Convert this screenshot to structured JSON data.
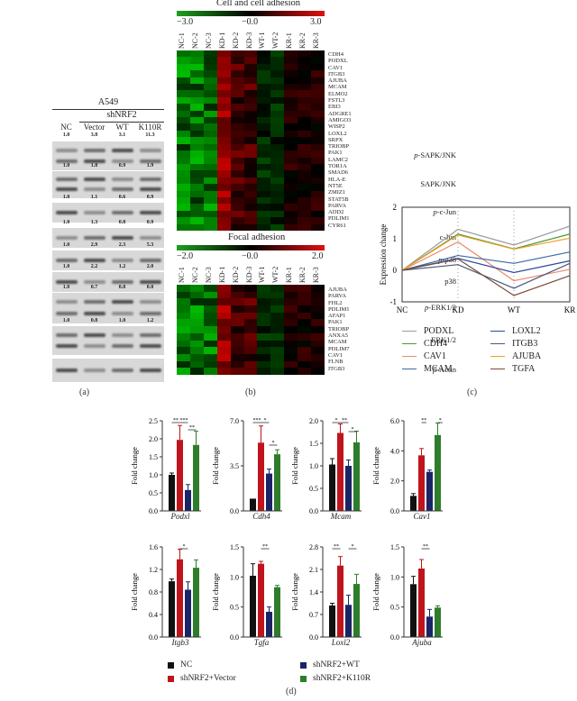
{
  "panels": {
    "a": "(a)",
    "b": "(b)",
    "c": "(c)",
    "d": "(d)"
  },
  "western_blot": {
    "cell_line": "A549",
    "group": "shNRF2",
    "lanes": [
      "NC",
      "Vector",
      "WT",
      "K110R"
    ],
    "rows": [
      {
        "label": "p-SAPK/JNK",
        "prefix": "p",
        "name": "-SAPK/JNK",
        "values": [
          "1.0",
          "3.8",
          "3.1",
          "11.3"
        ],
        "bands": 2
      },
      {
        "label": "SAPK/JNK",
        "prefix": "",
        "name": "SAPK/JNK",
        "values": [
          "1.0",
          "1.8",
          "0.9",
          "1.9"
        ],
        "bands": 2
      },
      {
        "label": "p-c-Jun",
        "prefix": "p",
        "name": "-c-Jun",
        "values": [
          "1.0",
          "1.1",
          "0.6",
          "0.9"
        ],
        "bands": 1
      },
      {
        "label": "c-Jun",
        "prefix": "",
        "name": "c-Jun",
        "values": [
          "1.0",
          "1.3",
          "0.8",
          "0.9"
        ],
        "bands": 1
      },
      {
        "label": "p-p38",
        "prefix": "p",
        "name": "-p38",
        "values": [
          "1.0",
          "2.9",
          "2.3",
          "5.3"
        ],
        "bands": 1
      },
      {
        "label": "p38",
        "prefix": "",
        "name": "p38",
        "values": [
          "1.0",
          "2.2",
          "1.2",
          "2.0"
        ],
        "bands": 1
      },
      {
        "label": "p-ERK1/2",
        "prefix": "p",
        "name": "-ERK1/2",
        "values": [
          "1.0",
          "0.7",
          "0.8",
          "0.8"
        ],
        "bands": 2
      },
      {
        "label": "ERK1/2",
        "prefix": "",
        "name": "ERK1/2",
        "values": [
          "1.0",
          "0.8",
          "1.0",
          "1.2"
        ],
        "bands": 2
      },
      {
        "label": "β-Actin",
        "prefix": "β",
        "name": "-Actin",
        "values": [],
        "bands": 1
      }
    ]
  },
  "heatmap1": {
    "title": "Cell and cell adhesion",
    "scale_min": "−3.0",
    "scale_mid": "−0.0",
    "scale_max": "3.0",
    "columns": [
      "NC-1",
      "NC-2",
      "NC-3",
      "KD-1",
      "KD-2",
      "KD-3",
      "WT-1",
      "WT-2",
      "KR-1",
      "KR-2",
      "KR-3"
    ],
    "genes": [
      "CDH4",
      "PODXL",
      "CAV1",
      "ITGB3",
      "AJUBA",
      "MCAM",
      "ELMO2",
      "FSTL3",
      "EBI3",
      "ADGRE1",
      "AMIGO3",
      "WISP2",
      "LOXL2",
      "SRPX",
      "TRIOBP",
      "PAK1",
      "LAMC2",
      "TOR1A",
      "SMAD6",
      "HLA-E",
      "NT5E",
      "ZMIZ1",
      "STAT5B",
      "PARVA",
      "ADD2",
      "PDLIM1",
      "CYR61"
    ]
  },
  "heatmap2": {
    "title": "Focal adhesion",
    "scale_min": "−2.0",
    "scale_mid": "−0.0",
    "scale_max": "2.0",
    "columns": [
      "NC-1",
      "NC-2",
      "NC-3",
      "KD-1",
      "KD-2",
      "KD-3",
      "WT-1",
      "WT-2",
      "KR-1",
      "KR-2",
      "KR-3"
    ],
    "genes": [
      "AJUBA",
      "PARVA",
      "FHL2",
      "PDLIM1",
      "AFAP1",
      "PAK1",
      "TRIOBP",
      "ANXA5",
      "MCAM",
      "PDLIM7",
      "CAV1",
      "FLNB",
      "ITGB3"
    ]
  },
  "chart_data": [
    {
      "type": "line",
      "title": "",
      "xlabel": "",
      "ylabel": "Expression change",
      "categories": [
        "NC",
        "KD",
        "WT",
        "KR"
      ],
      "ylim": [
        -1,
        2
      ],
      "yticks": [
        "2",
        "1",
        "0",
        "-1"
      ],
      "grid": "dotted vertical at KD and WT",
      "legend_position": "bottom",
      "series": [
        {
          "name": "PODXL",
          "color": "#9a9a9a",
          "values": [
            0,
            1.3,
            0.8,
            1.4
          ]
        },
        {
          "name": "CDH4",
          "color": "#4a9a3a",
          "values": [
            0,
            1.15,
            0.68,
            1.15
          ]
        },
        {
          "name": "CAV1",
          "color": "#f08a6a",
          "values": [
            0,
            0.9,
            -0.33,
            0.03
          ]
        },
        {
          "name": "MCAM",
          "color": "#3a6aa8",
          "values": [
            0,
            0.47,
            0.22,
            0.58
          ]
        },
        {
          "name": "LOXL2",
          "color": "#2a4a9a",
          "values": [
            0,
            0.38,
            -0.07,
            0.3
          ]
        },
        {
          "name": "ITGB3",
          "color": "#4a5a7a",
          "values": [
            0,
            0.18,
            -0.57,
            0.22
          ]
        },
        {
          "name": "AJUBA",
          "color": "#f0a020",
          "values": [
            0,
            1.12,
            0.67,
            1.02
          ]
        },
        {
          "name": "TGFA",
          "color": "#7a4a3a",
          "values": [
            0,
            0.36,
            -0.8,
            -0.17
          ]
        }
      ]
    },
    {
      "type": "bar",
      "title": "Podxl",
      "ylabel": "Fold change",
      "ylim": [
        0,
        2.5
      ],
      "yticks": [
        "2.5",
        "2.0",
        "1.5",
        "1.0",
        "0.5",
        "0.0"
      ],
      "categories": [
        "NC",
        "shNRF2+Vector",
        "shNRF2+WT",
        "shNRF2+K110R"
      ],
      "values": [
        1.0,
        1.97,
        0.58,
        1.83
      ],
      "errors": [
        0.05,
        0.4,
        0.15,
        0.38
      ],
      "significance": [
        "**",
        "***",
        "**"
      ]
    },
    {
      "type": "bar",
      "title": "Cdh4",
      "ylabel": "Fold change",
      "ylim": [
        0,
        7.0
      ],
      "yticks": [
        "7.0",
        "3.5",
        "0.0"
      ],
      "categories": [
        "NC",
        "shNRF2+Vector",
        "shNRF2+WT",
        "shNRF2+K110R"
      ],
      "values": [
        0.95,
        5.3,
        2.9,
        4.4
      ],
      "errors": [
        0.0,
        1.3,
        0.35,
        0.35
      ],
      "significance": [
        "***",
        "*",
        "*"
      ]
    },
    {
      "type": "bar",
      "title": "Mcam",
      "ylabel": "Fold change",
      "ylim": [
        0,
        2.0
      ],
      "yticks": [
        "2.0",
        "1.5",
        "1.0",
        "0.5",
        "0.0"
      ],
      "categories": [
        "NC",
        "shNRF2+Vector",
        "shNRF2+WT",
        "shNRF2+K110R"
      ],
      "values": [
        1.03,
        1.73,
        1.0,
        1.52
      ],
      "errors": [
        0.13,
        0.2,
        0.13,
        0.25
      ],
      "significance": [
        "*",
        "**",
        "*"
      ]
    },
    {
      "type": "bar",
      "title": "Cav1",
      "ylabel": "Fold change",
      "ylim": [
        0,
        6.0
      ],
      "yticks": [
        "6.0",
        "4.0",
        "2.0",
        "0.0"
      ],
      "categories": [
        "NC",
        "shNRF2+Vector",
        "shNRF2+WT",
        "shNRF2+K110R"
      ],
      "values": [
        1.0,
        3.7,
        2.6,
        5.05
      ],
      "errors": [
        0.15,
        0.45,
        0.12,
        0.8
      ],
      "significance": [
        "**",
        "*"
      ]
    },
    {
      "type": "bar",
      "title": "Itgb3",
      "ylabel": "Fold change",
      "ylim": [
        0,
        1.6
      ],
      "yticks": [
        "1.6",
        "1.2",
        "0.8",
        "0.4",
        "0.0"
      ],
      "categories": [
        "NC",
        "shNRF2+Vector",
        "shNRF2+WT",
        "shNRF2+K110R"
      ],
      "values": [
        0.99,
        1.38,
        0.84,
        1.23
      ],
      "errors": [
        0.04,
        0.18,
        0.14,
        0.14
      ],
      "significance": [
        "*"
      ]
    },
    {
      "type": "bar",
      "title": "Tgfa",
      "ylabel": "Fold change",
      "ylim": [
        0,
        1.5
      ],
      "yticks": [
        "1.5",
        "1.0",
        "0.5",
        "0.0"
      ],
      "categories": [
        "NC",
        "shNRF2+Vector",
        "shNRF2+WT",
        "shNRF2+K110R"
      ],
      "values": [
        1.02,
        1.22,
        0.42,
        0.83
      ],
      "errors": [
        0.2,
        0.04,
        0.08,
        0.03
      ],
      "significance": [
        "**"
      ]
    },
    {
      "type": "bar",
      "title": "Loxl2",
      "ylabel": "Fold change",
      "ylim": [
        0,
        2.8
      ],
      "yticks": [
        "2.8",
        "2.1",
        "1.4",
        "0.7",
        "0.0"
      ],
      "categories": [
        "NC",
        "shNRF2+Vector",
        "shNRF2+WT",
        "shNRF2+K110R"
      ],
      "values": [
        0.98,
        2.22,
        1.0,
        1.65
      ],
      "errors": [
        0.07,
        0.28,
        0.3,
        0.3
      ],
      "significance": [
        "**",
        "*"
      ]
    },
    {
      "type": "bar",
      "title": "Ajuba",
      "ylabel": "Fold change",
      "ylim": [
        0,
        1.5
      ],
      "yticks": [
        "1.5",
        "1.0",
        "0.5",
        "0.0"
      ],
      "categories": [
        "NC",
        "shNRF2+Vector",
        "shNRF2+WT",
        "shNRF2+K110R"
      ],
      "values": [
        0.88,
        1.14,
        0.34,
        0.49
      ],
      "errors": [
        0.13,
        0.15,
        0.12,
        0.03
      ],
      "significance": [
        "**"
      ]
    }
  ],
  "bar_legend": [
    {
      "label": "NC",
      "color": "#111111"
    },
    {
      "label": "shNRF2+Vector",
      "color": "#c0141c"
    },
    {
      "label": "shNRF2+WT",
      "color": "#1a2466"
    },
    {
      "label": "shNRF2+K110R",
      "color": "#2e7d2a"
    }
  ]
}
